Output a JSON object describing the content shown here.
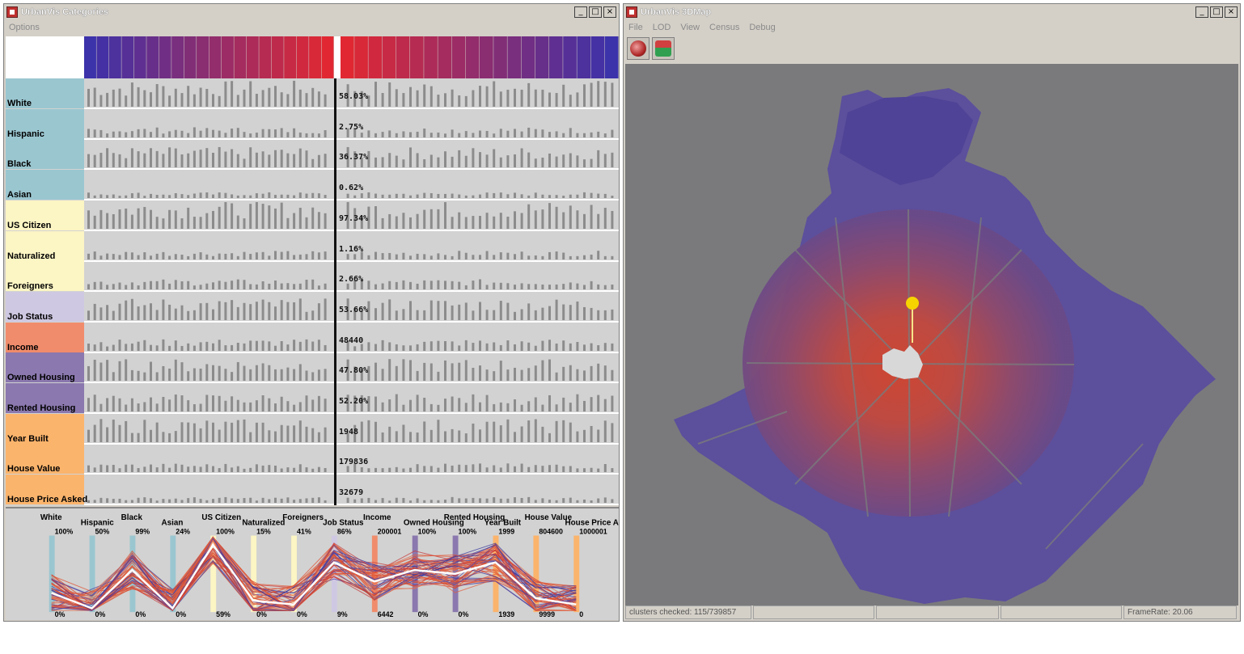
{
  "left_window": {
    "title": "UrbanVis Categories",
    "menu": [
      "Options"
    ],
    "categories": [
      {
        "label": "White",
        "pct": "58.03%",
        "color": "#9ac6d0"
      },
      {
        "label": "Hispanic",
        "pct": "2.75%",
        "color": "#9ac6d0"
      },
      {
        "label": "Black",
        "pct": "36.37%",
        "color": "#9ac6d0"
      },
      {
        "label": "Asian",
        "pct": "0.62%",
        "color": "#9ac6d0"
      },
      {
        "label": "US Citizen",
        "pct": "97.34%",
        "color": "#fcf5c4"
      },
      {
        "label": "Naturalized",
        "pct": "1.16%",
        "color": "#fcf5c4"
      },
      {
        "label": "Foreigners",
        "pct": "2.66%",
        "color": "#fcf5c4"
      },
      {
        "label": "Job Status",
        "pct": "53.66%",
        "color": "#cfc8e2"
      },
      {
        "label": "Income",
        "pct": "48440",
        "color": "#f08c6c"
      },
      {
        "label": "Owned Housing",
        "pct": "47.80%",
        "color": "#8a78ae"
      },
      {
        "label": "Rented Housing",
        "pct": "52.20%",
        "color": "#8a78ae"
      },
      {
        "label": "Year Built",
        "pct": "1948",
        "color": "#fbb46c"
      },
      {
        "label": "House Value",
        "pct": "179836",
        "color": "#fbb46c"
      },
      {
        "label": "House Price Asked",
        "pct": "32679",
        "color": "#fbb46c"
      }
    ],
    "parallel_axes": [
      {
        "name": "White",
        "max": "100%",
        "min": "0%",
        "color": "#9ac6d0"
      },
      {
        "name": "Hispanic",
        "max": "50%",
        "min": "0%",
        "color": "#9ac6d0"
      },
      {
        "name": "Black",
        "max": "99%",
        "min": "0%",
        "color": "#9ac6d0"
      },
      {
        "name": "Asian",
        "max": "24%",
        "min": "0%",
        "color": "#9ac6d0"
      },
      {
        "name": "US Citizen",
        "max": "100%",
        "min": "59%",
        "color": "#fcf5c4"
      },
      {
        "name": "Naturalized",
        "max": "15%",
        "min": "0%",
        "color": "#fcf5c4"
      },
      {
        "name": "Foreigners",
        "max": "41%",
        "min": "0%",
        "color": "#fcf5c4"
      },
      {
        "name": "Job Status",
        "max": "86%",
        "min": "9%",
        "color": "#cfc8e2"
      },
      {
        "name": "Income",
        "max": "200001",
        "min": "6442",
        "color": "#f08c6c"
      },
      {
        "name": "Owned Housing",
        "max": "100%",
        "min": "0%",
        "color": "#8a78ae"
      },
      {
        "name": "Rented Housing",
        "max": "100%",
        "min": "0%",
        "color": "#8a78ae"
      },
      {
        "name": "Year Built",
        "max": "1999",
        "min": "1939",
        "color": "#fbb46c"
      },
      {
        "name": "House Value",
        "max": "804600",
        "min": "9999",
        "color": "#fbb46c"
      },
      {
        "name": "House Price Asked",
        "max": "1000001",
        "min": "0",
        "color": "#fbb46c"
      }
    ]
  },
  "right_window": {
    "title": "UrbanVis 3DMap",
    "menu": [
      "File",
      "LOD",
      "View",
      "Census",
      "Debug"
    ],
    "toolbar_icons": [
      "globe-icon",
      "figure-icon"
    ],
    "status": {
      "clusters": "clusters checked: 115/739857",
      "framerate": "FrameRate: 20.06"
    }
  },
  "colors": {
    "title_bar": "#d4d0c8",
    "map_background": "#7a7a7c",
    "region_blue": "#5a4d9e",
    "region_red": "#c4503c",
    "highlight_pin": "#f6d400"
  }
}
